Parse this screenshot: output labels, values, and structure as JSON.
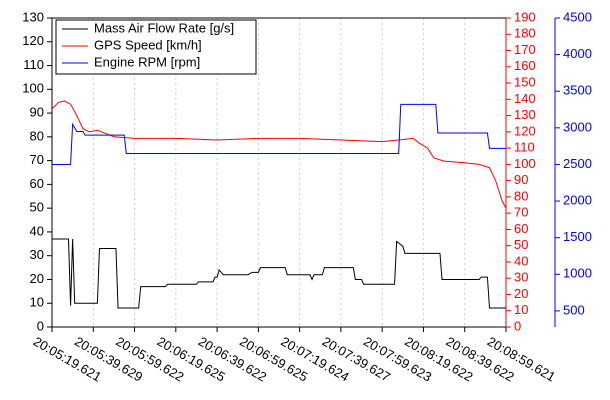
{
  "chart_data": {
    "type": "line",
    "xlim": [
      "20:05:19.621",
      "20:08:59.621"
    ],
    "xticks": [
      "20:05:19.621",
      "20:05:39.629",
      "20:05:59.622",
      "20:06:19.625",
      "20:06:39.622",
      "20:06:59.625",
      "20:07:19.624",
      "20:07:39.627",
      "20:07:59.623",
      "20:08:19.622",
      "20:08:39.622",
      "20:08:59.621"
    ],
    "ylim": [
      0,
      130
    ],
    "yticks": [
      0,
      10,
      20,
      30,
      40,
      50,
      60,
      70,
      80,
      90,
      100,
      110,
      120,
      130
    ],
    "y2lim": [
      0,
      190
    ],
    "y2ticks": [
      0,
      10,
      20,
      30,
      40,
      50,
      60,
      70,
      80,
      90,
      100,
      110,
      120,
      130,
      140,
      150,
      160,
      170,
      180,
      190
    ],
    "y3lim": [
      280,
      4500
    ],
    "y3ticks": [
      500,
      1000,
      1500,
      2000,
      2500,
      3000,
      3500,
      4000,
      4500
    ],
    "grid": true,
    "legend": "upper left",
    "series": [
      {
        "name": "Mass Air Flow Rate [g/s]",
        "color": "#000000",
        "axis": "y",
        "x": [
          "20:05:19.621",
          "20:05:27.621",
          "20:05:28.621",
          "20:05:29.621",
          "20:05:30.621",
          "20:05:41.621",
          "20:05:42.621",
          "20:05:50.621",
          "20:05:51.621",
          "20:06:01.621",
          "20:06:02.621",
          "20:06:14.621",
          "20:06:15.621",
          "20:06:29.621",
          "20:06:30.621",
          "20:06:37.621",
          "20:06:38.621",
          "20:06:39.621",
          "20:06:40.621",
          "20:06:42.621",
          "20:06:54.621",
          "20:06:56.621",
          "20:06:59.621",
          "20:07:00.621",
          "20:07:12.621",
          "20:07:13.621",
          "20:07:24.621",
          "20:07:25.621",
          "20:07:26.621",
          "20:07:30.621",
          "20:07:31.621",
          "20:07:45.621",
          "20:07:46.621",
          "20:07:49.621",
          "20:07:50.621",
          "20:08:05.621",
          "20:08:06.621",
          "20:08:09.621",
          "20:08:10.621",
          "20:08:27.621",
          "20:08:28.621",
          "20:08:46.621",
          "20:08:47.621",
          "20:08:50.621",
          "20:08:51.621",
          "20:08:59.621"
        ],
        "values": [
          37,
          37,
          9,
          37,
          10,
          10,
          33,
          33,
          8,
          8,
          17,
          17,
          18,
          18,
          19,
          19,
          21,
          21,
          24,
          22,
          22,
          23,
          23,
          25,
          25,
          22,
          22,
          20,
          22,
          22,
          25,
          25,
          20,
          20,
          18,
          18,
          36,
          34,
          31,
          31,
          20,
          20,
          21,
          21,
          8,
          8
        ]
      },
      {
        "name": "GPS Speed [km/h]",
        "color": "#ff0000",
        "axis": "y2",
        "x": [
          "20:05:19.621",
          "20:05:22.621",
          "20:05:25.621",
          "20:05:28.621",
          "20:05:31.621",
          "20:05:34.621",
          "20:05:37.621",
          "20:05:41.621",
          "20:05:45.621",
          "20:05:49.621",
          "20:05:59.621",
          "20:06:19.621",
          "20:06:39.621",
          "20:06:59.621",
          "20:07:19.621",
          "20:07:39.621",
          "20:07:59.621",
          "20:08:07.621",
          "20:08:14.621",
          "20:08:17.621",
          "20:08:21.621",
          "20:08:24.621",
          "20:08:29.621",
          "20:08:39.621",
          "20:08:46.621",
          "20:08:51.621",
          "20:08:54.621",
          "20:08:57.621",
          "20:08:59.621"
        ],
        "values": [
          134,
          138,
          139,
          137,
          130,
          122,
          120,
          121,
          119,
          117,
          116,
          116,
          115,
          116,
          116,
          115,
          114,
          115,
          116,
          113,
          110,
          104,
          102,
          101,
          100,
          98,
          90,
          78,
          73
        ]
      },
      {
        "name": "Engine RPM [rpm]",
        "color": "#0000ff",
        "axis": "y3",
        "x": [
          "20:05:19.621",
          "20:05:28.621",
          "20:05:29.621",
          "20:05:31.621",
          "20:05:34.621",
          "20:05:35.621",
          "20:05:54.621",
          "20:05:55.621",
          "20:08:07.621",
          "20:08:08.621",
          "20:08:25.621",
          "20:08:26.621",
          "20:08:50.621",
          "20:08:51.621",
          "20:08:59.621"
        ],
        "values": [
          2500,
          2500,
          3050,
          2950,
          2950,
          2900,
          2900,
          2650,
          2650,
          3320,
          3320,
          2930,
          2930,
          2720,
          2720
        ]
      }
    ]
  }
}
